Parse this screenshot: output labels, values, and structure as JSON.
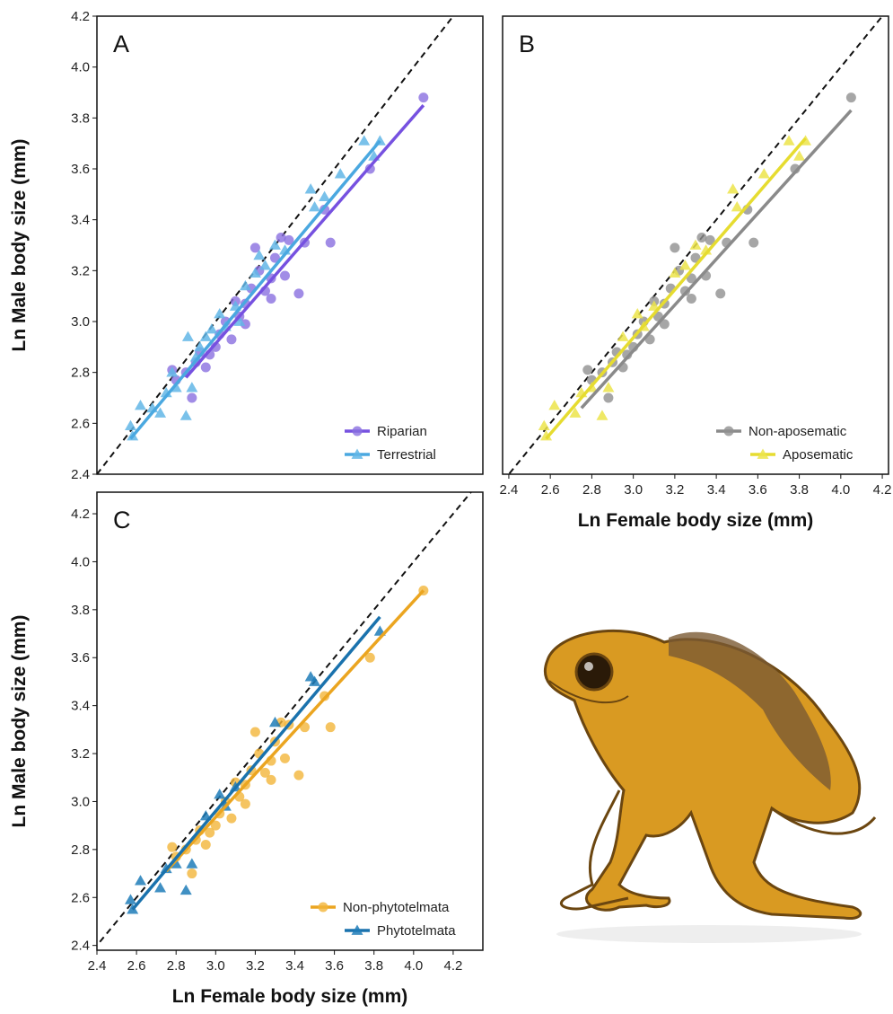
{
  "chart_data": [
    {
      "type": "scatter",
      "panel_label": "A",
      "y_label": "Ln Male body size (mm)",
      "xlim": [
        2.4,
        4.35
      ],
      "ylim": [
        2.4,
        4.2
      ],
      "yticks": [
        2.4,
        2.6,
        2.8,
        {
          "value": 3,
          "label": "3.0"
        },
        3.2,
        3.4,
        3.6,
        3.8,
        {
          "value": 4,
          "label": "4.0"
        },
        4.2
      ],
      "legend": "lower right",
      "identity_line": true,
      "series": [
        {
          "name": "Riparian",
          "color": "#8a6fe0",
          "line_color": "#7651e0",
          "marker": "circle",
          "x": [
            4.05,
            3.78,
            3.55,
            3.58,
            3.45,
            3.42,
            3.37,
            3.33,
            3.3,
            3.28,
            3.25,
            3.22,
            3.2,
            3.18,
            3.15,
            3.12,
            3.1,
            3.05,
            3.02,
            3.0,
            2.97,
            2.95,
            2.92,
            2.9,
            2.88,
            2.85,
            2.8,
            2.78,
            3.35,
            3.28,
            3.15,
            3.08
          ],
          "y": [
            3.88,
            3.6,
            3.44,
            3.31,
            3.31,
            3.11,
            3.32,
            3.33,
            3.25,
            3.17,
            3.12,
            3.2,
            3.29,
            3.13,
            3.07,
            3.02,
            3.08,
            3.0,
            2.95,
            2.9,
            2.87,
            2.82,
            2.88,
            2.84,
            2.7,
            2.8,
            2.77,
            2.81,
            3.18,
            3.09,
            2.99,
            2.93
          ],
          "fit": {
            "x": [
              2.85,
              4.05
            ],
            "y": [
              2.78,
              3.85
            ]
          }
        },
        {
          "name": "Terrestrial",
          "color": "#62b6e6",
          "line_color": "#4aa8e0",
          "marker": "triangle",
          "x": [
            2.57,
            2.58,
            2.62,
            2.68,
            2.72,
            2.75,
            2.78,
            2.8,
            2.85,
            2.86,
            2.88,
            2.9,
            2.92,
            2.95,
            3.02,
            3.05,
            3.1,
            3.15,
            3.2,
            3.22,
            3.25,
            3.3,
            3.35,
            3.48,
            3.5,
            3.55,
            3.63,
            3.75,
            3.8,
            3.83,
            3.12,
            2.98
          ],
          "y": [
            2.59,
            2.55,
            2.67,
            2.66,
            2.64,
            2.72,
            2.8,
            2.74,
            2.63,
            2.94,
            2.74,
            2.86,
            2.9,
            2.94,
            3.03,
            2.98,
            3.06,
            3.14,
            3.19,
            3.26,
            3.22,
            3.3,
            3.28,
            3.52,
            3.45,
            3.49,
            3.58,
            3.71,
            3.65,
            3.71,
            3.0,
            2.97
          ],
          "fit": {
            "x": [
              2.57,
              3.83
            ],
            "y": [
              2.54,
              3.71
            ]
          }
        }
      ]
    },
    {
      "type": "scatter",
      "panel_label": "B",
      "x_label": "Ln Female body size (mm)",
      "xlim": [
        2.37,
        4.23
      ],
      "ylim": [
        2.4,
        4.2
      ],
      "xticks": [
        2.4,
        2.6,
        2.8,
        {
          "value": 3,
          "label": "3.0"
        },
        3.2,
        3.4,
        3.6,
        3.8,
        {
          "value": 4,
          "label": "4.0"
        },
        4.2
      ],
      "legend": "lower right",
      "identity_line": true,
      "series": [
        {
          "name": "Non-aposematic",
          "color": "#909090",
          "line_color": "#8a8a8a",
          "marker": "circle",
          "x": [
            4.05,
            3.78,
            3.55,
            3.58,
            3.45,
            3.42,
            3.37,
            3.33,
            3.3,
            3.28,
            3.25,
            3.22,
            3.2,
            3.18,
            3.15,
            3.12,
            3.1,
            3.05,
            3.02,
            3.0,
            2.97,
            2.95,
            2.92,
            2.9,
            2.88,
            2.85,
            2.8,
            2.78,
            3.35,
            3.28,
            3.15,
            3.08
          ],
          "y": [
            3.88,
            3.6,
            3.44,
            3.31,
            3.31,
            3.11,
            3.32,
            3.33,
            3.25,
            3.17,
            3.12,
            3.2,
            3.29,
            3.13,
            3.07,
            3.02,
            3.08,
            3.0,
            2.95,
            2.9,
            2.87,
            2.82,
            2.88,
            2.84,
            2.7,
            2.8,
            2.77,
            2.81,
            3.18,
            3.09,
            2.99,
            2.93
          ],
          "fit": {
            "x": [
              2.75,
              4.05
            ],
            "y": [
              2.66,
              3.83
            ]
          }
        },
        {
          "name": "Aposematic",
          "color": "#ece44a",
          "line_color": "#e6dc30",
          "marker": "triangle",
          "x": [
            2.57,
            2.58,
            2.62,
            2.72,
            2.75,
            2.8,
            2.85,
            2.88,
            2.95,
            3.02,
            3.05,
            3.1,
            3.2,
            3.25,
            3.3,
            3.35,
            3.48,
            3.5,
            3.63,
            3.75,
            3.8,
            3.83
          ],
          "y": [
            2.59,
            2.55,
            2.67,
            2.64,
            2.72,
            2.74,
            2.63,
            2.74,
            2.94,
            3.03,
            2.98,
            3.06,
            3.19,
            3.22,
            3.3,
            3.28,
            3.52,
            3.45,
            3.58,
            3.71,
            3.65,
            3.71
          ],
          "fit": {
            "x": [
              2.58,
              3.83
            ],
            "y": [
              2.54,
              3.72
            ]
          }
        }
      ]
    },
    {
      "type": "scatter",
      "panel_label": "C",
      "x_label": "Ln Female body size (mm)",
      "y_label": "Ln Male body size (mm)",
      "xlim": [
        2.4,
        4.35
      ],
      "ylim": [
        2.38,
        4.29
      ],
      "xticks": [
        2.4,
        2.6,
        2.8,
        {
          "value": 3,
          "label": "3.0"
        },
        3.2,
        3.4,
        3.6,
        3.8,
        {
          "value": 4,
          "label": "4.0"
        },
        4.2
      ],
      "yticks": [
        2.4,
        2.6,
        2.8,
        {
          "value": 3,
          "label": "3.0"
        },
        3.2,
        3.4,
        3.6,
        3.8,
        {
          "value": 4,
          "label": "4.0"
        },
        4.2
      ],
      "legend": "lower right",
      "identity_line": true,
      "series": [
        {
          "name": "Non-phytotelmata",
          "color": "#f2b53a",
          "line_color": "#eba520",
          "marker": "circle",
          "x": [
            4.05,
            3.78,
            3.55,
            3.58,
            3.45,
            3.42,
            3.37,
            3.33,
            3.3,
            3.28,
            3.25,
            3.22,
            3.2,
            3.18,
            3.15,
            3.12,
            3.1,
            3.05,
            3.02,
            3.0,
            2.97,
            2.95,
            2.92,
            2.9,
            2.88,
            2.85,
            2.8,
            2.78,
            3.35,
            3.28,
            3.15,
            3.08
          ],
          "y": [
            3.88,
            3.6,
            3.44,
            3.31,
            3.31,
            3.11,
            3.32,
            3.33,
            3.25,
            3.17,
            3.12,
            3.2,
            3.29,
            3.13,
            3.07,
            3.02,
            3.08,
            3.0,
            2.95,
            2.9,
            2.87,
            2.82,
            2.88,
            2.84,
            2.7,
            2.8,
            2.77,
            2.81,
            3.18,
            3.09,
            2.99,
            2.93
          ],
          "fit": {
            "x": [
              2.75,
              4.05
            ],
            "y": [
              2.71,
              3.88
            ]
          }
        },
        {
          "name": "Phytotelmata",
          "color": "#1f7cb8",
          "line_color": "#1a72ad",
          "marker": "triangle",
          "x": [
            2.57,
            2.58,
            2.62,
            2.72,
            2.75,
            2.8,
            2.85,
            2.88,
            2.95,
            3.02,
            3.05,
            3.1,
            3.3,
            3.48,
            3.5,
            3.83
          ],
          "y": [
            2.59,
            2.55,
            2.67,
            2.64,
            2.72,
            2.74,
            2.63,
            2.74,
            2.94,
            3.03,
            2.98,
            3.06,
            3.33,
            3.52,
            3.5,
            3.71
          ],
          "fit": {
            "x": [
              2.58,
              3.83
            ],
            "y": [
              2.55,
              3.77
            ]
          }
        }
      ]
    }
  ]
}
